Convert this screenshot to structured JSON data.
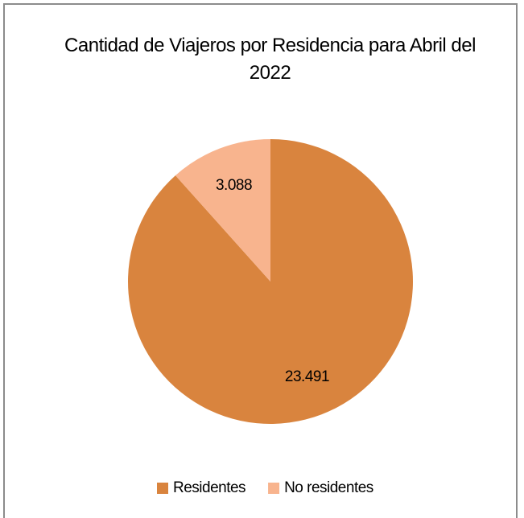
{
  "chart_data": {
    "type": "pie",
    "title": "Cantidad de Viajeros por Residencia para Abril del 2022",
    "categories": [
      "Residentes",
      "No residentes"
    ],
    "values": [
      23491,
      3088
    ],
    "value_labels": [
      "23.491",
      "3.088"
    ],
    "colors": [
      "#d9843e",
      "#f8b48e"
    ],
    "legend": "bottom"
  }
}
